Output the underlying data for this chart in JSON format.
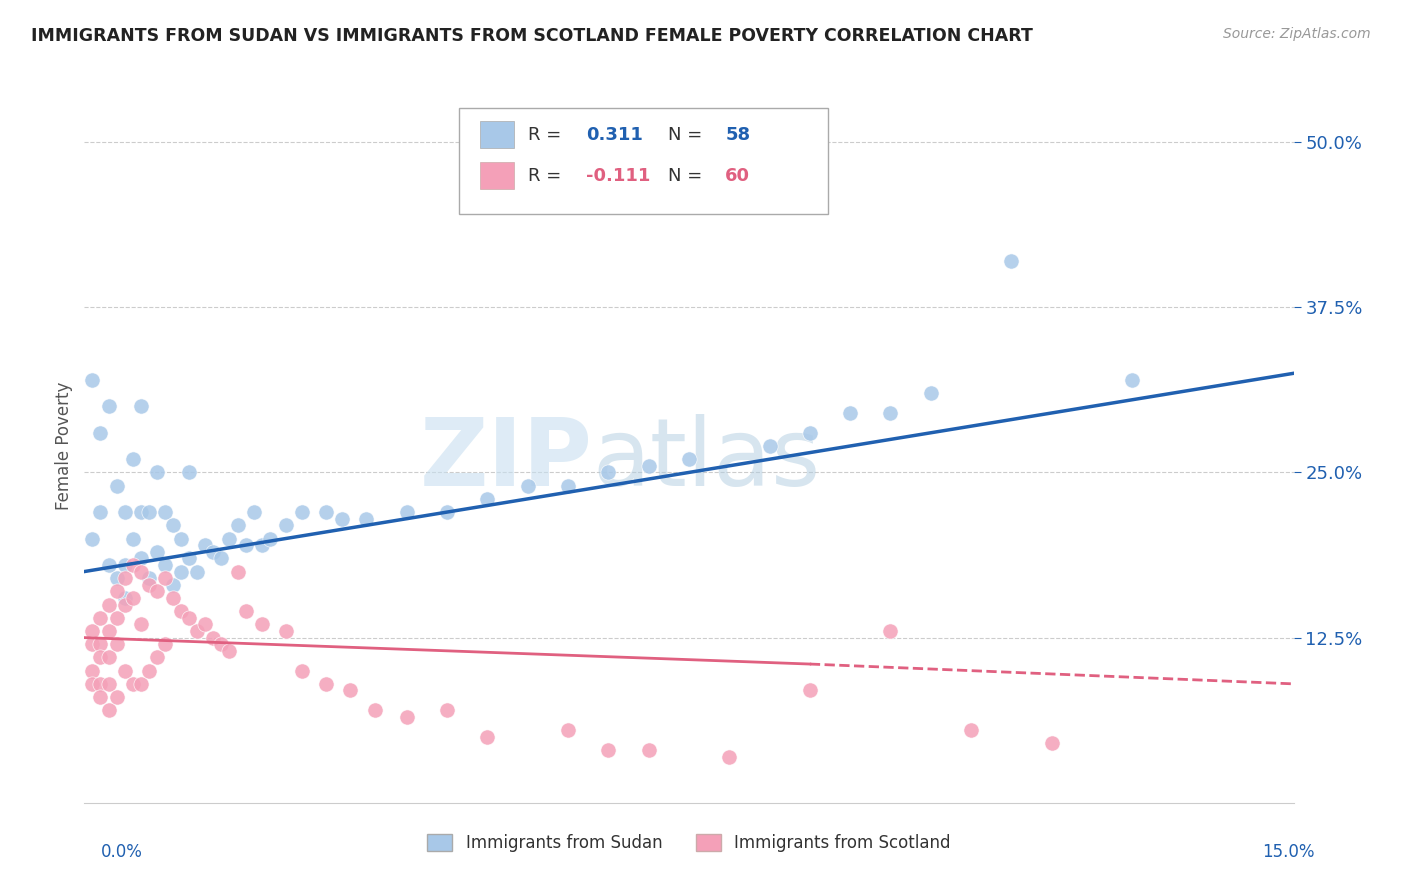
{
  "title": "IMMIGRANTS FROM SUDAN VS IMMIGRANTS FROM SCOTLAND FEMALE POVERTY CORRELATION CHART",
  "source": "Source: ZipAtlas.com",
  "ylabel": "Female Poverty",
  "y_ticks": [
    "12.5%",
    "25.0%",
    "37.5%",
    "50.0%"
  ],
  "y_tick_vals": [
    0.125,
    0.25,
    0.375,
    0.5
  ],
  "x_min": 0.0,
  "x_max": 0.15,
  "y_min": 0.0,
  "y_max": 0.54,
  "sudan_R": 0.311,
  "sudan_N": 58,
  "scotland_R": -0.111,
  "scotland_N": 60,
  "sudan_color": "#a8c8e8",
  "scotland_color": "#f4a0b8",
  "sudan_line_color": "#2060b0",
  "scotland_line_color": "#e06080",
  "sudan_scatter_x": [
    0.001,
    0.001,
    0.002,
    0.002,
    0.003,
    0.003,
    0.004,
    0.004,
    0.005,
    0.005,
    0.005,
    0.006,
    0.006,
    0.007,
    0.007,
    0.007,
    0.008,
    0.008,
    0.009,
    0.009,
    0.01,
    0.01,
    0.011,
    0.011,
    0.012,
    0.012,
    0.013,
    0.013,
    0.014,
    0.015,
    0.016,
    0.017,
    0.018,
    0.019,
    0.02,
    0.021,
    0.022,
    0.023,
    0.025,
    0.027,
    0.03,
    0.032,
    0.035,
    0.04,
    0.045,
    0.05,
    0.055,
    0.06,
    0.065,
    0.07,
    0.075,
    0.085,
    0.09,
    0.095,
    0.1,
    0.105,
    0.115,
    0.13
  ],
  "sudan_scatter_y": [
    0.2,
    0.32,
    0.22,
    0.28,
    0.18,
    0.3,
    0.17,
    0.24,
    0.155,
    0.22,
    0.18,
    0.2,
    0.26,
    0.185,
    0.22,
    0.3,
    0.17,
    0.22,
    0.19,
    0.25,
    0.18,
    0.22,
    0.165,
    0.21,
    0.175,
    0.2,
    0.185,
    0.25,
    0.175,
    0.195,
    0.19,
    0.185,
    0.2,
    0.21,
    0.195,
    0.22,
    0.195,
    0.2,
    0.21,
    0.22,
    0.22,
    0.215,
    0.215,
    0.22,
    0.22,
    0.23,
    0.24,
    0.24,
    0.25,
    0.255,
    0.26,
    0.27,
    0.28,
    0.295,
    0.295,
    0.31,
    0.41,
    0.32
  ],
  "scotland_scatter_x": [
    0.001,
    0.001,
    0.001,
    0.001,
    0.002,
    0.002,
    0.002,
    0.002,
    0.002,
    0.003,
    0.003,
    0.003,
    0.003,
    0.003,
    0.004,
    0.004,
    0.004,
    0.004,
    0.005,
    0.005,
    0.005,
    0.006,
    0.006,
    0.006,
    0.007,
    0.007,
    0.007,
    0.008,
    0.008,
    0.009,
    0.009,
    0.01,
    0.01,
    0.011,
    0.012,
    0.013,
    0.014,
    0.015,
    0.016,
    0.017,
    0.018,
    0.019,
    0.02,
    0.022,
    0.025,
    0.027,
    0.03,
    0.033,
    0.036,
    0.04,
    0.045,
    0.05,
    0.06,
    0.065,
    0.07,
    0.08,
    0.09,
    0.1,
    0.11,
    0.12
  ],
  "scotland_scatter_y": [
    0.13,
    0.12,
    0.1,
    0.09,
    0.14,
    0.12,
    0.11,
    0.09,
    0.08,
    0.15,
    0.13,
    0.11,
    0.09,
    0.07,
    0.16,
    0.14,
    0.12,
    0.08,
    0.17,
    0.15,
    0.1,
    0.18,
    0.155,
    0.09,
    0.175,
    0.135,
    0.09,
    0.165,
    0.1,
    0.16,
    0.11,
    0.17,
    0.12,
    0.155,
    0.145,
    0.14,
    0.13,
    0.135,
    0.125,
    0.12,
    0.115,
    0.175,
    0.145,
    0.135,
    0.13,
    0.1,
    0.09,
    0.085,
    0.07,
    0.065,
    0.07,
    0.05,
    0.055,
    0.04,
    0.04,
    0.035,
    0.085,
    0.13,
    0.055,
    0.045
  ],
  "watermark_zip": "ZIP",
  "watermark_atlas": "atlas",
  "background_color": "#ffffff",
  "grid_color": "#cccccc"
}
